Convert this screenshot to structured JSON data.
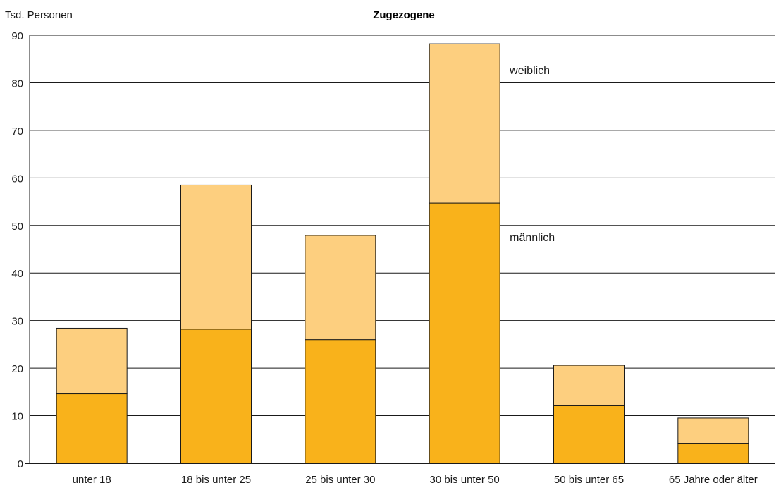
{
  "chart_data": {
    "type": "bar",
    "stacked": true,
    "title": "Zugezogene",
    "ylabel": "Tsd. Personen",
    "xlabel": "",
    "ylim": [
      0,
      90
    ],
    "yticks": [
      0,
      10,
      20,
      30,
      40,
      50,
      60,
      70,
      80,
      90
    ],
    "grid": true,
    "categories": [
      "unter 18",
      "18 bis unter 25",
      "25 bis unter 30",
      "30 bis unter 50",
      "50 bis unter 65",
      "65 Jahre oder älter"
    ],
    "series": [
      {
        "name": "männlich",
        "color": "#f9b21b",
        "values": [
          14.6,
          28.2,
          26.0,
          54.7,
          12.1,
          4.1
        ]
      },
      {
        "name": "weiblich",
        "color": "#fdcf7f",
        "values": [
          13.8,
          30.3,
          21.9,
          33.5,
          8.5,
          5.4
        ]
      }
    ]
  }
}
